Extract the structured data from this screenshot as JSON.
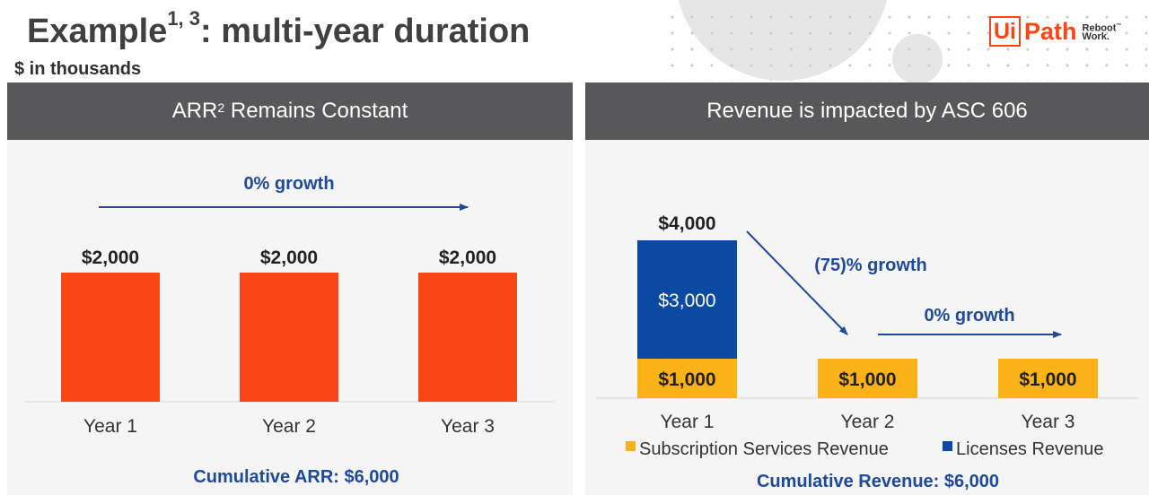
{
  "header": {
    "title_main": "Example",
    "title_sup": "1, 3",
    "title_rest": ": multi-year duration",
    "subtitle": "$ in thousands"
  },
  "logo": {
    "ui": "Ui",
    "path": "Path",
    "reboot": "Reboot",
    "work": "Work.",
    "tm": "™"
  },
  "left_panel": {
    "header_main": "ARR",
    "header_sup": "2",
    "header_rest": " Remains Constant"
  },
  "right_panel": {
    "header": "Revenue is impacted by ASC 606"
  },
  "colors": {
    "orange": "#fa4616",
    "navy": "#0b4aa2",
    "yellow": "#fbb216",
    "annotation_blue": "#1e4a99",
    "header_gray": "#58585a"
  },
  "chart_data": [
    {
      "type": "bar",
      "categories": [
        "Year 1",
        "Year 2",
        "Year 3"
      ],
      "values": [
        2000,
        2000,
        2000
      ],
      "data_labels": [
        "$2,000",
        "$2,000",
        "$2,000"
      ],
      "ylim": [
        0,
        2500
      ],
      "annotations": [
        "0% growth"
      ],
      "footer": "Cumulative ARR: $6,000",
      "legend": "none"
    },
    {
      "type": "bar",
      "stacked": true,
      "categories": [
        "Year 1",
        "Year 2",
        "Year 3"
      ],
      "series": [
        {
          "name": "Subscription Services Revenue",
          "values": [
            1000,
            1000,
            1000
          ],
          "labels": [
            "$1,000",
            "$1,000",
            "$1,000"
          ],
          "color": "#fbb216"
        },
        {
          "name": "Licenses Revenue",
          "values": [
            3000,
            0,
            0
          ],
          "labels": [
            "$3,000",
            "",
            ""
          ],
          "color": "#0b4aa2"
        }
      ],
      "totals": [
        "$4,000",
        "",
        ""
      ],
      "ylim": [
        0,
        4500
      ],
      "annotations": [
        "(75)% growth",
        "0% growth"
      ],
      "footer": "Cumulative Revenue: $6,000",
      "legend": "bottom"
    }
  ]
}
